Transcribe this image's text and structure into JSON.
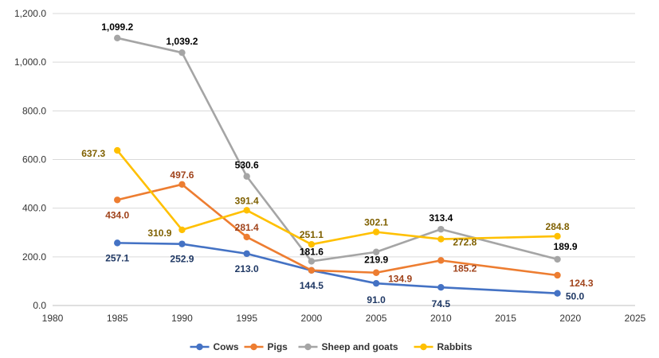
{
  "chart_data": {
    "type": "line",
    "xlim": [
      1980,
      2025
    ],
    "ylim": [
      0,
      1200
    ],
    "x_ticks": [
      "1980",
      "1985",
      "1990",
      "1995",
      "2000",
      "2005",
      "2010",
      "2015",
      "2020",
      "2025"
    ],
    "y_ticks": [
      "0.0",
      "200.0",
      "400.0",
      "600.0",
      "800.0",
      "1,000.0",
      "1,200.0"
    ],
    "grid": "horizontal",
    "legend_position": "bottom",
    "x": [
      1985,
      1990,
      1995,
      2000,
      2005,
      2010,
      2019
    ],
    "series": [
      {
        "name": "Cows",
        "color": "#4472C4",
        "label_color": "#1F3864",
        "values": [
          257.1,
          252.9,
          213.0,
          144.5,
          91.0,
          74.5,
          50.0
        ],
        "labels": [
          "257.1",
          "252.9",
          "213.0",
          "144.5",
          "91.0",
          "74.5",
          "50.0"
        ]
      },
      {
        "name": "Pigs",
        "color": "#ED7D31",
        "label_color": "#A0431B",
        "values": [
          434.0,
          497.6,
          281.4,
          144.5,
          134.9,
          185.2,
          124.3
        ],
        "labels": [
          "434.0",
          "497.6",
          "281.4",
          "",
          "134.9",
          "185.2",
          "124.3"
        ]
      },
      {
        "name": "Sheep and goats",
        "color": "#A5A5A5",
        "label_color": "#000000",
        "values": [
          1099.2,
          1039.2,
          530.6,
          181.6,
          219.9,
          313.4,
          189.9
        ],
        "labels": [
          "1,099.2",
          "1,039.2",
          "530.6",
          "181.6",
          "219.9",
          "313.4",
          "189.9"
        ]
      },
      {
        "name": "Rabbits",
        "color": "#FFC000",
        "label_color": "#7F6000",
        "values": [
          637.3,
          310.9,
          391.4,
          251.1,
          302.1,
          272.8,
          284.8
        ],
        "labels": [
          "637.3",
          "310.9",
          "391.4",
          "251.1",
          "302.1",
          "272.8",
          "284.8"
        ]
      }
    ]
  }
}
